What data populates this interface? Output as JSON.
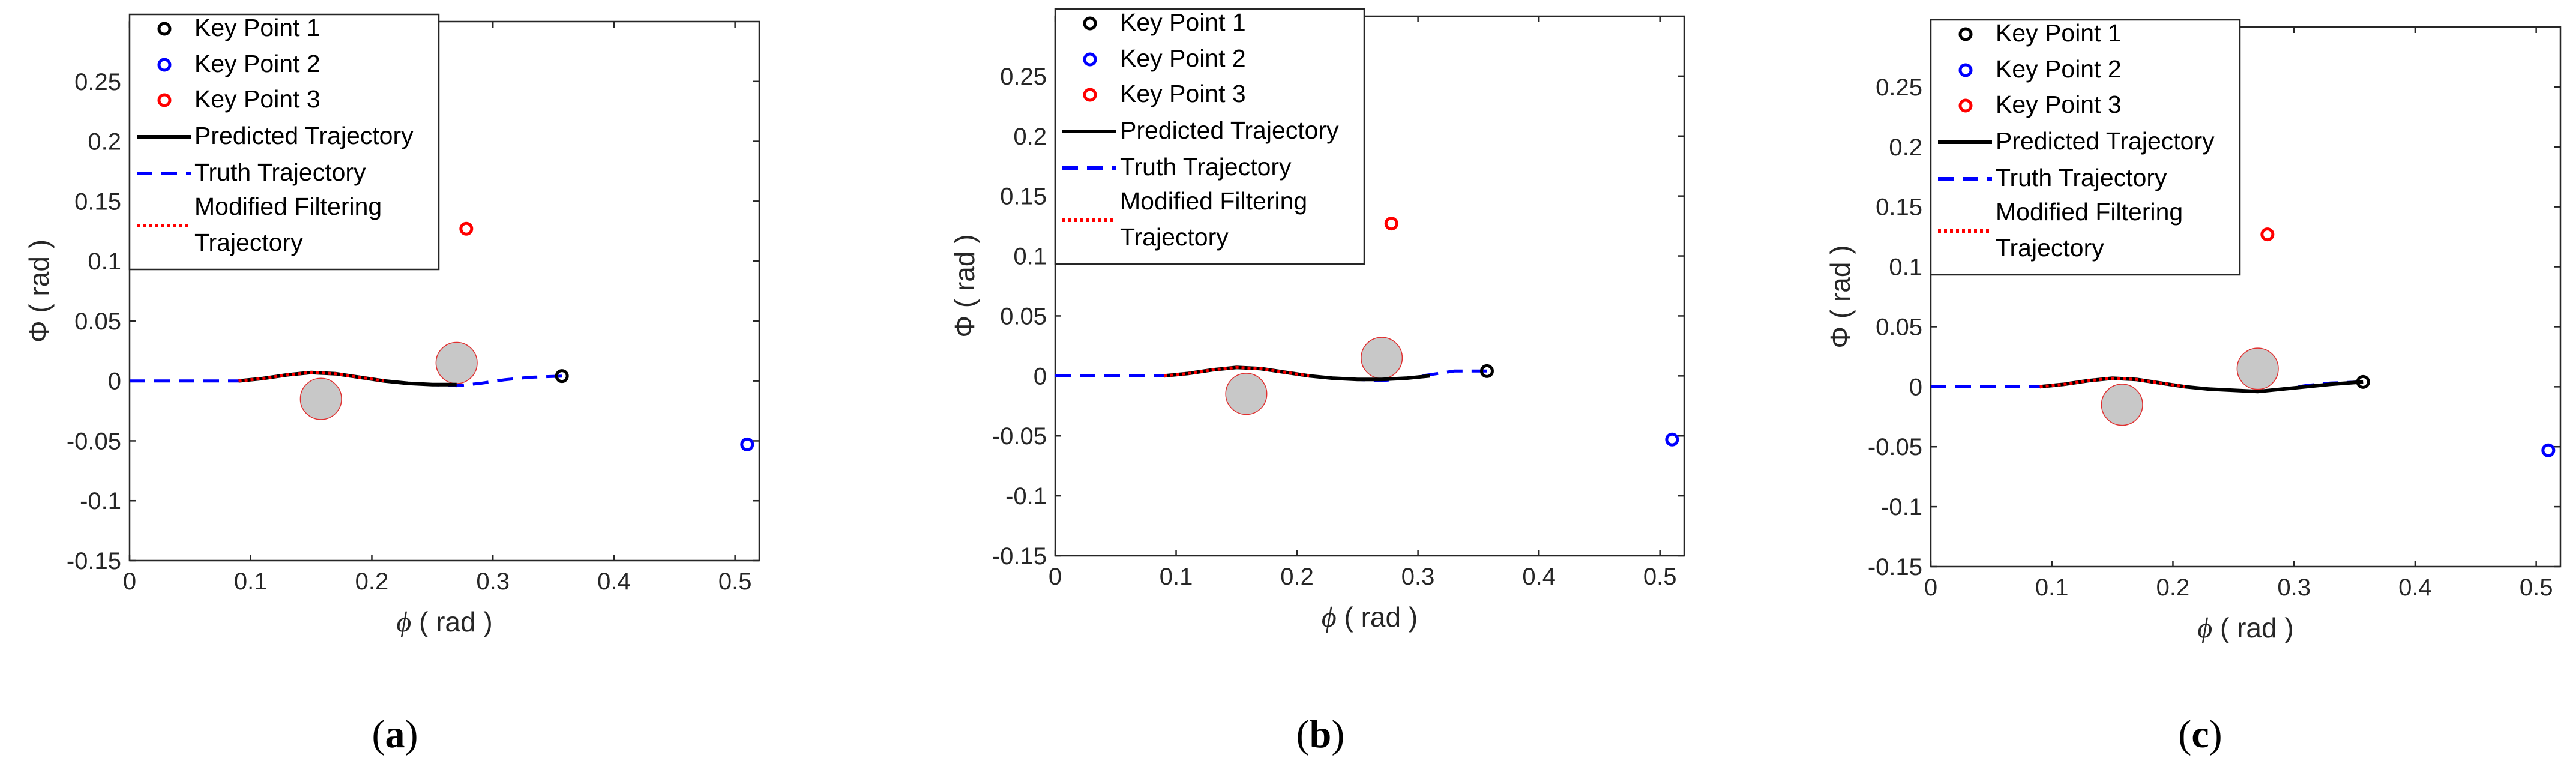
{
  "figure": {
    "panel_labels": [
      "(a)",
      "(b)",
      "(c)"
    ]
  },
  "chart_data": [
    {
      "type": "line",
      "panel": "(a)",
      "title": "",
      "xlabel_symbol": "ϕ",
      "xlabel_unit": " ( rad )",
      "ylabel_symbol": "Φ",
      "ylabel_unit": " ( rad )",
      "xlim": [
        0,
        0.52
      ],
      "ylim": [
        -0.15,
        0.3
      ],
      "xticks": [
        0,
        0.1,
        0.2,
        0.3,
        0.4,
        0.5
      ],
      "xtick_labels": [
        "0",
        "0.1",
        "0.2",
        "0.3",
        "0.4",
        "0.5"
      ],
      "yticks": [
        -0.15,
        -0.1,
        -0.05,
        0,
        0.05,
        0.1,
        0.15,
        0.2,
        0.25
      ],
      "ytick_labels": [
        "-0.15",
        "-0.1",
        "-0.05",
        "0",
        "0.05",
        "0.1",
        "0.15",
        "0.2",
        "0.25"
      ],
      "legend_position": "top-left",
      "legend": [
        "Key Point 1",
        "Key Point 2",
        "Key Point 3",
        "Predicted Trajectory",
        "Truth Trajectory",
        "Modified Filtering",
        "Trajectory"
      ],
      "key_points": [
        {
          "name": "Key Point 1",
          "x": 0.357,
          "y": 0.004,
          "color": "#000000"
        },
        {
          "name": "Key Point 2",
          "x": 0.51,
          "y": -0.053,
          "color": "#0000ff"
        },
        {
          "name": "Key Point 3",
          "x": 0.278,
          "y": 0.127,
          "color": "#ff0000"
        }
      ],
      "obstacles": [
        {
          "x": 0.158,
          "y": -0.015,
          "r": 0.017
        },
        {
          "x": 0.27,
          "y": 0.015,
          "r": 0.017
        }
      ],
      "series": [
        {
          "name": "Predicted Trajectory",
          "color": "#000000",
          "style": "solid",
          "x": [
            0.09,
            0.11,
            0.13,
            0.15,
            0.17,
            0.19,
            0.21,
            0.23,
            0.25,
            0.27
          ],
          "y": [
            0.0,
            0.002,
            0.005,
            0.007,
            0.006,
            0.003,
            0.0,
            -0.002,
            -0.003,
            -0.003
          ]
        },
        {
          "name": "Truth Trajectory",
          "color": "#0000ff",
          "style": "dashed",
          "x": [
            0,
            0.05,
            0.09,
            0.11,
            0.13,
            0.15,
            0.17,
            0.19,
            0.21,
            0.23,
            0.25,
            0.27,
            0.29,
            0.31,
            0.33,
            0.357
          ],
          "y": [
            0,
            0,
            0,
            0.002,
            0.005,
            0.007,
            0.006,
            0.003,
            0.0,
            -0.002,
            -0.003,
            -0.004,
            -0.002,
            0.001,
            0.003,
            0.004
          ]
        },
        {
          "name": "Modified Filtering Trajectory",
          "color": "#ff0000",
          "style": "dotted",
          "x": [
            0.09,
            0.11,
            0.13,
            0.15,
            0.17,
            0.19,
            0.21
          ],
          "y": [
            0.0,
            0.002,
            0.005,
            0.007,
            0.006,
            0.003,
            0.0
          ]
        }
      ]
    },
    {
      "type": "line",
      "panel": "(b)",
      "title": "",
      "xlabel_symbol": "ϕ",
      "xlabel_unit": " ( rad )",
      "ylabel_symbol": "Φ",
      "ylabel_unit": " ( rad )",
      "xlim": [
        0,
        0.52
      ],
      "ylim": [
        -0.15,
        0.3
      ],
      "xticks": [
        0,
        0.1,
        0.2,
        0.3,
        0.4,
        0.5
      ],
      "xtick_labels": [
        "0",
        "0.1",
        "0.2",
        "0.3",
        "0.4",
        "0.5"
      ],
      "yticks": [
        -0.15,
        -0.1,
        -0.05,
        0,
        0.05,
        0.1,
        0.15,
        0.2,
        0.25
      ],
      "ytick_labels": [
        "-0.15",
        "-0.1",
        "-0.05",
        "0",
        "0.05",
        "0.1",
        "0.15",
        "0.2",
        "0.25"
      ],
      "legend_position": "top-left",
      "legend": [
        "Key Point 1",
        "Key Point 2",
        "Key Point 3",
        "Predicted Trajectory",
        "Truth Trajectory",
        "Modified Filtering",
        "Trajectory"
      ],
      "key_points": [
        {
          "name": "Key Point 1",
          "x": 0.357,
          "y": 0.004,
          "color": "#000000"
        },
        {
          "name": "Key Point 2",
          "x": 0.51,
          "y": -0.053,
          "color": "#0000ff"
        },
        {
          "name": "Key Point 3",
          "x": 0.278,
          "y": 0.127,
          "color": "#ff0000"
        }
      ],
      "obstacles": [
        {
          "x": 0.158,
          "y": -0.015,
          "r": 0.017
        },
        {
          "x": 0.27,
          "y": 0.015,
          "r": 0.017
        }
      ],
      "series": [
        {
          "name": "Predicted Trajectory",
          "color": "#000000",
          "style": "solid",
          "x": [
            0.09,
            0.11,
            0.13,
            0.15,
            0.17,
            0.19,
            0.21,
            0.23,
            0.25,
            0.27,
            0.29,
            0.31
          ],
          "y": [
            0.0,
            0.002,
            0.005,
            0.007,
            0.006,
            0.003,
            0.0,
            -0.002,
            -0.003,
            -0.003,
            -0.002,
            0.0
          ]
        },
        {
          "name": "Truth Trajectory",
          "color": "#0000ff",
          "style": "dashed",
          "x": [
            0,
            0.05,
            0.09,
            0.11,
            0.13,
            0.15,
            0.17,
            0.19,
            0.21,
            0.23,
            0.25,
            0.27,
            0.29,
            0.31,
            0.33,
            0.357
          ],
          "y": [
            0,
            0,
            0,
            0.002,
            0.005,
            0.007,
            0.006,
            0.003,
            0.0,
            -0.002,
            -0.003,
            -0.004,
            -0.002,
            0.001,
            0.004,
            0.004
          ]
        },
        {
          "name": "Modified Filtering Trajectory",
          "color": "#ff0000",
          "style": "dotted",
          "x": [
            0.09,
            0.11,
            0.13,
            0.15,
            0.17,
            0.19,
            0.21
          ],
          "y": [
            0.0,
            0.002,
            0.005,
            0.007,
            0.006,
            0.003,
            0.0
          ]
        }
      ]
    },
    {
      "type": "line",
      "panel": "(c)",
      "title": "",
      "xlabel_symbol": "ϕ",
      "xlabel_unit": " ( rad )",
      "ylabel_symbol": "Φ",
      "ylabel_unit": " ( rad )",
      "xlim": [
        0,
        0.52
      ],
      "ylim": [
        -0.15,
        0.3
      ],
      "xticks": [
        0,
        0.1,
        0.2,
        0.3,
        0.4,
        0.5
      ],
      "xtick_labels": [
        "0",
        "0.1",
        "0.2",
        "0.3",
        "0.4",
        "0.5"
      ],
      "yticks": [
        -0.15,
        -0.1,
        -0.05,
        0,
        0.05,
        0.1,
        0.15,
        0.2,
        0.25
      ],
      "ytick_labels": [
        "-0.15",
        "-0.1",
        "-0.05",
        "0",
        "0.05",
        "0.1",
        "0.15",
        "0.2",
        "0.25"
      ],
      "legend_position": "top-left",
      "legend": [
        "Key Point 1",
        "Key Point 2",
        "Key Point 3",
        "Predicted Trajectory",
        "Truth Trajectory",
        "Modified Filtering",
        "Trajectory"
      ],
      "key_points": [
        {
          "name": "Key Point 1",
          "x": 0.357,
          "y": 0.004,
          "color": "#000000"
        },
        {
          "name": "Key Point 2",
          "x": 0.51,
          "y": -0.053,
          "color": "#0000ff"
        },
        {
          "name": "Key Point 3",
          "x": 0.278,
          "y": 0.127,
          "color": "#ff0000"
        }
      ],
      "obstacles": [
        {
          "x": 0.158,
          "y": -0.015,
          "r": 0.017
        },
        {
          "x": 0.27,
          "y": 0.015,
          "r": 0.017
        }
      ],
      "series": [
        {
          "name": "Predicted Trajectory",
          "color": "#000000",
          "style": "solid",
          "x": [
            0.09,
            0.11,
            0.13,
            0.15,
            0.17,
            0.19,
            0.21,
            0.23,
            0.25,
            0.27,
            0.29,
            0.31,
            0.33,
            0.357
          ],
          "y": [
            0.0,
            0.002,
            0.005,
            0.007,
            0.006,
            0.003,
            0.0,
            -0.002,
            -0.003,
            -0.004,
            -0.002,
            0.0,
            0.002,
            0.004
          ]
        },
        {
          "name": "Truth Trajectory",
          "color": "#0000ff",
          "style": "dashed",
          "x": [
            0,
            0.05,
            0.09,
            0.11,
            0.13,
            0.15,
            0.17,
            0.19,
            0.21,
            0.23,
            0.25,
            0.27,
            0.29,
            0.31,
            0.33,
            0.357
          ],
          "y": [
            0,
            0,
            0,
            0.002,
            0.005,
            0.007,
            0.006,
            0.003,
            0.0,
            -0.002,
            -0.003,
            -0.004,
            -0.002,
            0.001,
            0.003,
            0.004
          ]
        },
        {
          "name": "Modified Filtering Trajectory",
          "color": "#ff0000",
          "style": "dotted",
          "x": [
            0.09,
            0.11,
            0.13,
            0.15,
            0.17,
            0.19,
            0.21
          ],
          "y": [
            0.0,
            0.002,
            0.005,
            0.007,
            0.006,
            0.003,
            0.0
          ]
        }
      ]
    }
  ]
}
